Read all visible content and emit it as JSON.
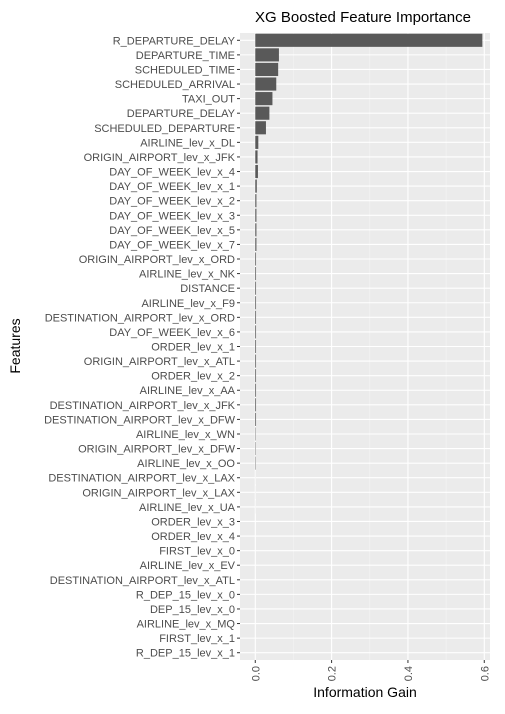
{
  "chart_data": {
    "type": "bar",
    "orientation": "horizontal",
    "title": "XG Boosted Feature Importance",
    "xlabel": "Information Gain",
    "ylabel": "Features",
    "xlim": [
      -0.04,
      0.615
    ],
    "xticks": [
      0.0,
      0.2,
      0.4,
      0.6
    ],
    "xtick_labels": [
      "0.0",
      "0.2",
      "0.4",
      "0.6"
    ],
    "grid": true,
    "legend": "none",
    "colors": {
      "bar": "#595959",
      "panel": "#ebebeb",
      "grid_major": "#ffffff",
      "grid_minor": "#f5f5f5",
      "text": "#4d4d4d",
      "title": "#000000"
    },
    "categories": [
      "R_DEP_15_lev_x_1",
      "FIRST_lev_x_1",
      "AIRLINE_lev_x_MQ",
      "DEP_15_lev_x_0",
      "R_DEP_15_lev_x_0",
      "DESTINATION_AIRPORT_lev_x_ATL",
      "AIRLINE_lev_x_EV",
      "FIRST_lev_x_0",
      "ORDER_lev_x_4",
      "ORDER_lev_x_3",
      "AIRLINE_lev_x_UA",
      "ORIGIN_AIRPORT_lev_x_LAX",
      "DESTINATION_AIRPORT_lev_x_LAX",
      "AIRLINE_lev_x_OO",
      "ORIGIN_AIRPORT_lev_x_DFW",
      "AIRLINE_lev_x_WN",
      "DESTINATION_AIRPORT_lev_x_DFW",
      "DESTINATION_AIRPORT_lev_x_JFK",
      "AIRLINE_lev_x_AA",
      "ORDER_lev_x_2",
      "ORIGIN_AIRPORT_lev_x_ATL",
      "ORDER_lev_x_1",
      "DAY_OF_WEEK_lev_x_6",
      "DESTINATION_AIRPORT_lev_x_ORD",
      "AIRLINE_lev_x_F9",
      "DISTANCE",
      "AIRLINE_lev_x_NK",
      "ORIGIN_AIRPORT_lev_x_ORD",
      "DAY_OF_WEEK_lev_x_7",
      "DAY_OF_WEEK_lev_x_5",
      "DAY_OF_WEEK_lev_x_3",
      "DAY_OF_WEEK_lev_x_2",
      "DAY_OF_WEEK_lev_x_1",
      "DAY_OF_WEEK_lev_x_4",
      "ORIGIN_AIRPORT_lev_x_JFK",
      "AIRLINE_lev_x_DL",
      "SCHEDULED_DEPARTURE",
      "DEPARTURE_DELAY",
      "TAXI_OUT",
      "SCHEDULED_ARRIVAL",
      "SCHEDULED_TIME",
      "DEPARTURE_TIME",
      "R_DEPARTURE_DELAY"
    ],
    "values": [
      0.0,
      0.0,
      0.0,
      0.0,
      0.0,
      0.0,
      0.0,
      0.0,
      0.0,
      0.0,
      0.0001,
      0.0001,
      0.0001,
      0.001,
      0.001,
      0.001,
      0.002,
      0.002,
      0.002,
      0.002,
      0.002,
      0.002,
      0.002,
      0.002,
      0.002,
      0.002,
      0.002,
      0.002,
      0.003,
      0.003,
      0.003,
      0.003,
      0.004,
      0.007,
      0.006,
      0.008,
      0.028,
      0.037,
      0.045,
      0.055,
      0.06,
      0.062,
      0.595
    ]
  }
}
